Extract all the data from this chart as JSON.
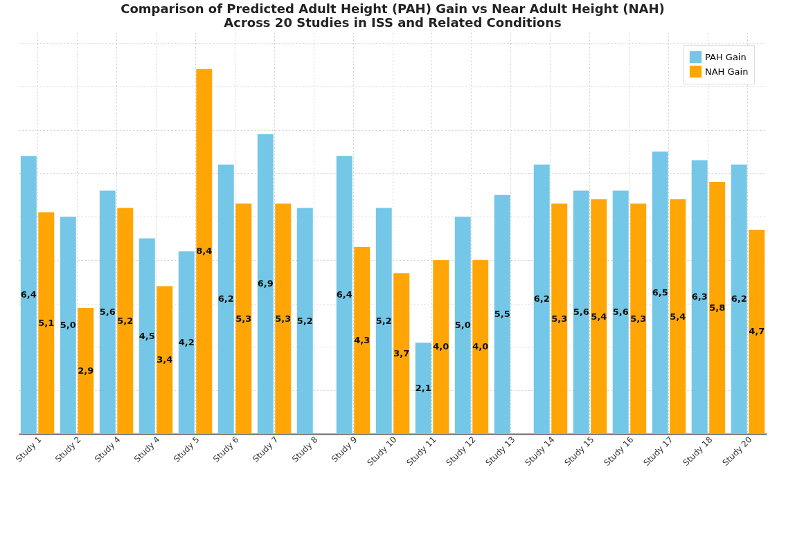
{
  "chart_data": {
    "type": "bar",
    "title": "Comparison of Predicted Adult Height (PAH) Gain vs Near Adult Height (NAH)\nAcross 20 Studies in ISS and Related Conditions",
    "categories": [
      "Study 1",
      "Study 2",
      "Study 4",
      "Study 4",
      "Study 5",
      "Study 6",
      "Study 7",
      "Study 8",
      "Study 9",
      "Study 10",
      "Study 11",
      "Study 12",
      "Study 13",
      "Study 14",
      "Study 15",
      "Study 16",
      "Study 17",
      "Study 18",
      "Study 20"
    ],
    "grid": true,
    "legend": "top right",
    "series": [
      {
        "name": "PAH Gain",
        "color": "#74c7e6",
        "values": [
          6.4,
          5.0,
          5.6,
          4.5,
          4.2,
          6.2,
          6.9,
          5.2,
          6.4,
          5.2,
          2.1,
          5.0,
          5.5,
          6.2,
          5.6,
          5.6,
          6.5,
          6.3,
          6.2
        ],
        "value_labels": [
          "6,4",
          "5,0",
          "5,6",
          "4,5",
          "4,2",
          "6,2",
          "6,9",
          "5,2",
          "6,4",
          "5,2",
          "2,1",
          "5,0",
          "5,5",
          "6,2",
          "5,6",
          "5,6",
          "6,5",
          "6,3",
          "6,2"
        ]
      },
      {
        "name": "NAH Gain",
        "color": "#ffa505",
        "values": [
          5.1,
          2.9,
          5.2,
          3.4,
          8.4,
          5.3,
          5.3,
          null,
          4.3,
          3.7,
          4.0,
          4.0,
          null,
          5.3,
          5.4,
          5.3,
          5.4,
          5.8,
          4.7
        ],
        "value_labels": [
          "5,1",
          "2,9",
          "5,2",
          "3,4",
          "8,4",
          "5,3",
          "5,3",
          null,
          "4,3",
          "3,7",
          "4,0",
          "4,0",
          null,
          "5,3",
          "5,4",
          "5,3",
          "5,4",
          "5,8",
          "4,7"
        ]
      }
    ]
  }
}
